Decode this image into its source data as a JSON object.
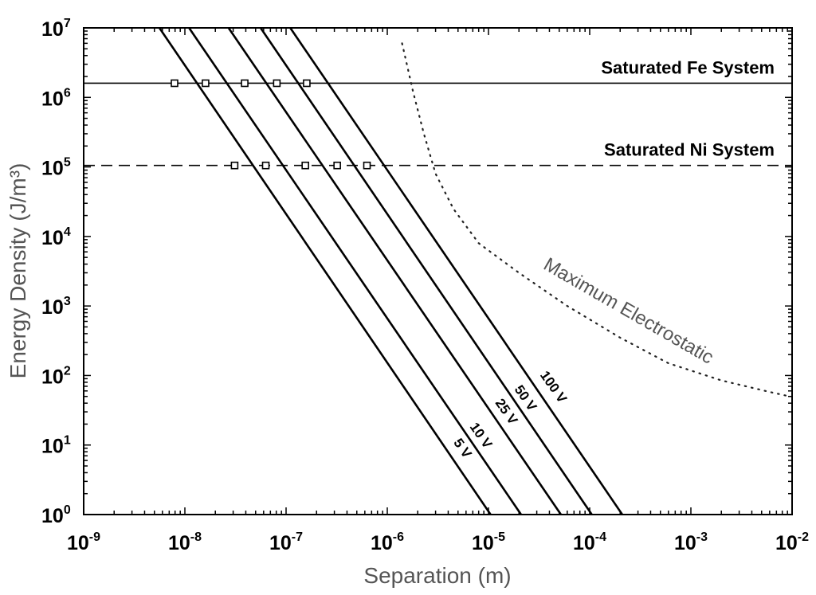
{
  "chart_data": {
    "type": "line",
    "xlabel": "Separation (m)",
    "ylabel": "Energy Density (J/m³)",
    "xscale": "log",
    "yscale": "log",
    "xlim_exp": [
      -9,
      -2
    ],
    "ylim_exp": [
      0,
      7
    ],
    "x_tick_labels": [
      {
        "base": "10",
        "exp": "-9"
      },
      {
        "base": "10",
        "exp": "-8"
      },
      {
        "base": "10",
        "exp": "-7"
      },
      {
        "base": "10",
        "exp": "-6"
      },
      {
        "base": "10",
        "exp": "-5"
      },
      {
        "base": "10",
        "exp": "-4"
      },
      {
        "base": "10",
        "exp": "-3"
      },
      {
        "base": "10",
        "exp": "-2"
      }
    ],
    "y_tick_labels": [
      {
        "base": "10",
        "exp": "0"
      },
      {
        "base": "10",
        "exp": "1"
      },
      {
        "base": "10",
        "exp": "2"
      },
      {
        "base": "10",
        "exp": "3"
      },
      {
        "base": "10",
        "exp": "4"
      },
      {
        "base": "10",
        "exp": "5"
      },
      {
        "base": "10",
        "exp": "6"
      },
      {
        "base": "10",
        "exp": "7"
      }
    ],
    "series": [
      {
        "name": "5 V",
        "points": [
          [
            5.6e-09,
            10000000.0
          ],
          [
            1.05e-05,
            1
          ]
        ]
      },
      {
        "name": "10 V",
        "points": [
          [
            1.1e-08,
            10000000.0
          ],
          [
            2.1e-05,
            1
          ]
        ]
      },
      {
        "name": "25 V",
        "points": [
          [
            2.7e-08,
            10000000.0
          ],
          [
            5.2e-05,
            1
          ]
        ]
      },
      {
        "name": "50 V",
        "points": [
          [
            5.6e-08,
            10000000.0
          ],
          [
            0.000105,
            1
          ]
        ]
      },
      {
        "name": "100 V",
        "points": [
          [
            1.1e-07,
            10000000.0
          ],
          [
            0.00021,
            1
          ]
        ]
      }
    ],
    "reference_lines": [
      {
        "label": "Saturated Fe System",
        "y": 1600000.0,
        "style": "solid"
      },
      {
        "label": "Saturated Ni System",
        "y": 105000.0,
        "style": "dashed"
      }
    ],
    "markers": [
      {
        "x": 7.9e-09,
        "y": 1600000.0
      },
      {
        "x": 1.6e-08,
        "y": 1600000.0
      },
      {
        "x": 3.9e-08,
        "y": 1600000.0
      },
      {
        "x": 8.1e-08,
        "y": 1600000.0
      },
      {
        "x": 1.6e-07,
        "y": 1600000.0
      },
      {
        "x": 3.1e-08,
        "y": 105000.0
      },
      {
        "x": 6.3e-08,
        "y": 105000.0
      },
      {
        "x": 1.55e-07,
        "y": 105000.0
      },
      {
        "x": 3.2e-07,
        "y": 105000.0
      },
      {
        "x": 6.3e-07,
        "y": 105000.0
      }
    ],
    "curve": {
      "label": "Maximum Electrostatic",
      "style": "dotted",
      "points": [
        [
          1.4e-06,
          6000000.0
        ],
        [
          1.8e-06,
          1200000.0
        ],
        [
          2.3e-06,
          300000.0
        ],
        [
          3e-06,
          80000.0
        ],
        [
          4.5e-06,
          25000.0
        ],
        [
          8e-06,
          8000.0
        ],
        [
          2e-05,
          3000.0
        ],
        [
          6e-05,
          1000.0
        ],
        [
          0.0002,
          350
        ],
        [
          0.0006,
          150
        ],
        [
          0.002,
          85
        ],
        [
          0.006,
          58
        ],
        [
          0.0095,
          50
        ]
      ]
    }
  }
}
